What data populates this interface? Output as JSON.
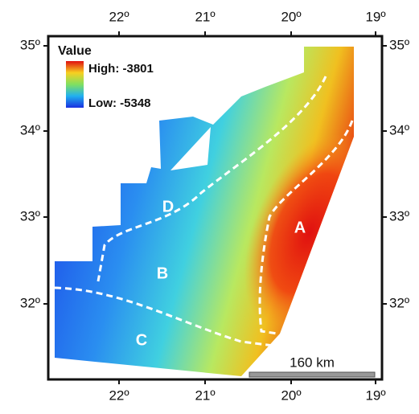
{
  "legend": {
    "title": "Value",
    "high": "High: -3801",
    "low": "Low: -5348"
  },
  "x_labels": [
    "22º",
    "21º",
    "20º",
    "19º"
  ],
  "y_labels": [
    "35º",
    "34º",
    "33º",
    "32º"
  ],
  "regions": [
    "A",
    "B",
    "C",
    "D"
  ],
  "scale_bar": "160 km"
}
